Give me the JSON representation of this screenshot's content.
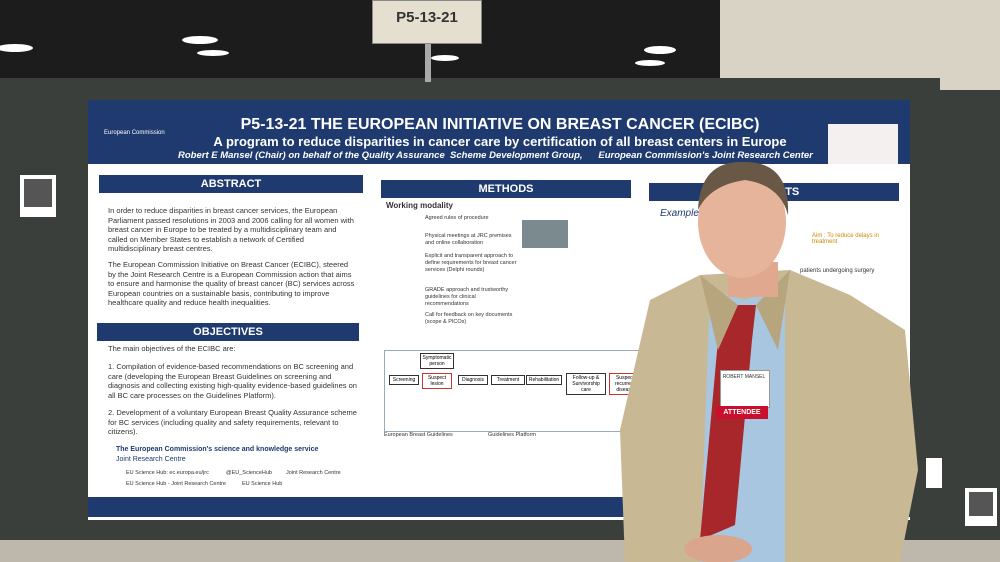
{
  "sign": "P5-13-21",
  "poster": {
    "title": "P5-13-21 THE EUROPEAN INITIATIVE ON BREAST CANCER (ECIBC)",
    "subtitle": "A program to reduce disparities in cancer care by certification of all breast centers in Europe",
    "authors": "Robert E Mansel (Chair) on behalf of the Quality Assurance  Scheme Development Group,      European Commission's Joint Research Center",
    "logo": "European Commission",
    "abstract": {
      "heading": "ABSTRACT",
      "paragraphs": [
        "In order to reduce disparities in breast cancer services, the European Parliament passed resolutions in 2003 and 2006 calling for  all women with breast cancer in Europe to be treated by a multidisciplinary team and called on Member States to establish a network of Certified multidisciplinary breast centres.",
        "The European Commission Initiative on Breast Cancer (ECIBC), steered by the Joint Research Centre is a European Commission action that aims to ensure and harmonise the quality of breast cancer (BC) services across European countries on a sustainable basis, contributing to improve healthcare quality and reduce health inequalities."
      ]
    },
    "objectives": {
      "heading": "OBJECTIVES",
      "intro": "The main objectives of the ECIBC are:",
      "items": [
        "1.  Compilation of evidence-based recommendations on BC screening and care (developing the European Breast Guidelines on screening and diagnosis and collecting existing high-quality evidence-based guidelines on all BC care processes on the Guidelines Platform).",
        "2.  Development of a voluntary European Breast Quality Assurance scheme for BC services (including quality and safety requirements, relevant to citizens)."
      ]
    },
    "methods": {
      "heading": "METHODS",
      "subheading": "Working modality",
      "items": [
        "Agreed rules of procedure",
        "Physical meetings at JRC premises and online collaboration",
        "Explicit and transparent approach to define requirements for breast cancer services (Delphi rounds)",
        "GRADE approach and trustworthy guidelines for clinical recommendations",
        "Call for feedback on key documents (scope & PICOs)"
      ],
      "flow": [
        "Symptomatic person",
        "Screening",
        "Suspect lesion",
        "Diagnosis",
        "Treatment",
        "Rehabilitation",
        "Follow-up & Survivorship care",
        "Suspect recurrent disease"
      ],
      "flow_labels": [
        "European Breast Guidelines",
        "Guidelines Platform"
      ]
    },
    "results": {
      "heading": "RESULTS",
      "subheading": "Examples",
      "notes": [
        "Aim : To reduce delays in treatment",
        "patients undergoing surgery"
      ]
    },
    "footer": {
      "line1": "The European Commission's science and knowledge service",
      "line2": "Joint Research Centre",
      "links": [
        "EU Science Hub: ec.europa.eu/jrc",
        "@EU_ScienceHub",
        "Joint Research Centre",
        "EU Science Hub - Joint Research Centre",
        "EU Science Hub"
      ]
    }
  },
  "badge": {
    "name": "ROBERT MANSEL",
    "role": "ATTENDEE"
  }
}
